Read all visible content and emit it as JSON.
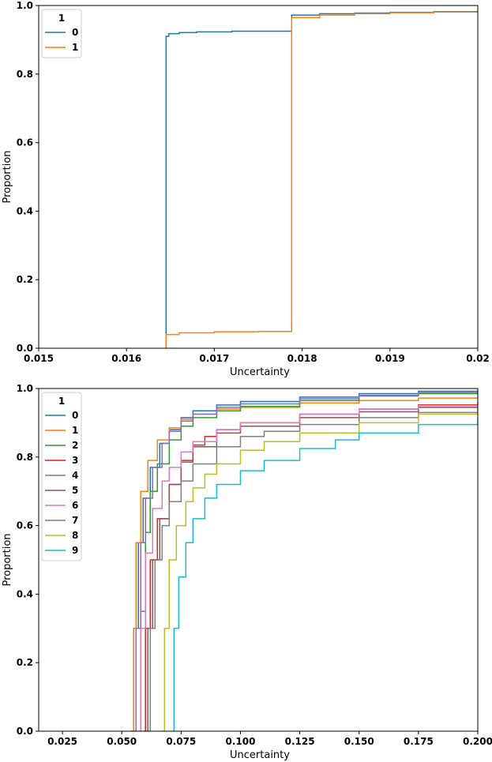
{
  "chart_data": [
    {
      "type": "line",
      "xlabel": "Uncertainty",
      "ylabel": "Proportion",
      "xlim": [
        0.015,
        0.02
      ],
      "ylim": [
        0.0,
        1.0
      ],
      "xticks": [
        "0.015",
        "0.016",
        "0.017",
        "0.018",
        "0.019",
        "0.02"
      ],
      "yticks": [
        "0.0",
        "0.2",
        "0.4",
        "0.6",
        "0.8",
        "1.0"
      ],
      "legend": {
        "title": "1",
        "placement": "top-left"
      },
      "grid": false,
      "series": [
        {
          "name": "0",
          "color": "#1f77b4",
          "x": [
            0.01645,
            0.01645,
            0.01648,
            0.0166,
            0.0168,
            0.0172,
            0.01788,
            0.01788,
            0.0182,
            0.0186,
            0.019,
            0.0195,
            0.02
          ],
          "y": [
            0.0,
            0.91,
            0.918,
            0.921,
            0.923,
            0.925,
            0.928,
            0.972,
            0.976,
            0.978,
            0.98,
            0.982,
            0.983
          ]
        },
        {
          "name": "1",
          "color": "#ff7f0e",
          "x": [
            0.01645,
            0.01645,
            0.0166,
            0.017,
            0.0175,
            0.01788,
            0.01788,
            0.0182,
            0.0186,
            0.019,
            0.0195,
            0.02
          ],
          "y": [
            0.0,
            0.04,
            0.045,
            0.048,
            0.049,
            0.05,
            0.965,
            0.972,
            0.976,
            0.979,
            0.981,
            0.983
          ]
        }
      ]
    },
    {
      "type": "line",
      "xlabel": "Uncertainty",
      "ylabel": "Proportion",
      "xlim": [
        0.015,
        0.2
      ],
      "ylim": [
        0.0,
        1.0
      ],
      "xticks": [
        "0.025",
        "0.050",
        "0.075",
        "0.100",
        "0.125",
        "0.150",
        "0.175",
        "0.200"
      ],
      "yticks": [
        "0.0",
        "0.2",
        "0.4",
        "0.6",
        "0.8",
        "1.0"
      ],
      "legend": {
        "title": "1",
        "placement": "top-left"
      },
      "grid": false,
      "series": [
        {
          "name": "0",
          "color": "#1f77b4",
          "x": [
            0.054,
            0.055,
            0.057,
            0.059,
            0.062,
            0.066,
            0.07,
            0.075,
            0.08,
            0.09,
            0.1,
            0.125,
            0.15,
            0.175,
            0.2
          ],
          "y": [
            0.0,
            0.3,
            0.55,
            0.68,
            0.77,
            0.84,
            0.88,
            0.915,
            0.935,
            0.952,
            0.962,
            0.975,
            0.985,
            0.992,
            0.995
          ]
        },
        {
          "name": "1",
          "color": "#ff7f0e",
          "x": [
            0.054,
            0.055,
            0.056,
            0.058,
            0.061,
            0.065,
            0.07,
            0.075,
            0.08,
            0.09,
            0.1,
            0.125,
            0.15,
            0.175,
            0.2
          ],
          "y": [
            0.0,
            0.3,
            0.55,
            0.7,
            0.79,
            0.85,
            0.885,
            0.91,
            0.925,
            0.94,
            0.945,
            0.958,
            0.965,
            0.972,
            0.978
          ]
        },
        {
          "name": "2",
          "color": "#2ca02c",
          "x": [
            0.057,
            0.058,
            0.06,
            0.062,
            0.065,
            0.07,
            0.075,
            0.08,
            0.09,
            0.1,
            0.125,
            0.15,
            0.175,
            0.2
          ],
          "y": [
            0.0,
            0.35,
            0.58,
            0.7,
            0.78,
            0.85,
            0.89,
            0.915,
            0.935,
            0.948,
            0.965,
            0.978,
            0.985,
            0.99
          ]
        },
        {
          "name": "3",
          "color": "#d62728",
          "x": [
            0.059,
            0.06,
            0.062,
            0.065,
            0.07,
            0.075,
            0.08,
            0.085,
            0.09,
            0.1,
            0.125,
            0.15,
            0.175,
            0.2
          ],
          "y": [
            0.0,
            0.3,
            0.5,
            0.62,
            0.72,
            0.79,
            0.835,
            0.86,
            0.88,
            0.9,
            0.925,
            0.94,
            0.952,
            0.96
          ]
        },
        {
          "name": "4",
          "color": "#9467bd",
          "x": [
            0.055,
            0.056,
            0.058,
            0.06,
            0.063,
            0.067,
            0.07,
            0.075,
            0.08,
            0.09,
            0.1,
            0.125,
            0.15,
            0.175,
            0.2
          ],
          "y": [
            0.0,
            0.3,
            0.55,
            0.68,
            0.77,
            0.84,
            0.875,
            0.905,
            0.925,
            0.945,
            0.955,
            0.97,
            0.98,
            0.988,
            0.992
          ]
        },
        {
          "name": "5",
          "color": "#8c564b",
          "x": [
            0.06,
            0.061,
            0.063,
            0.066,
            0.07,
            0.075,
            0.08,
            0.09,
            0.1,
            0.125,
            0.15,
            0.175,
            0.2
          ],
          "y": [
            0.0,
            0.3,
            0.5,
            0.62,
            0.72,
            0.785,
            0.83,
            0.87,
            0.89,
            0.915,
            0.932,
            0.945,
            0.955
          ]
        },
        {
          "name": "6",
          "color": "#e377c2",
          "x": [
            0.057,
            0.058,
            0.06,
            0.063,
            0.067,
            0.07,
            0.075,
            0.08,
            0.09,
            0.1,
            0.125,
            0.15,
            0.175,
            0.2
          ],
          "y": [
            0.0,
            0.3,
            0.52,
            0.65,
            0.73,
            0.77,
            0.815,
            0.845,
            0.88,
            0.9,
            0.925,
            0.94,
            0.95,
            0.958
          ]
        },
        {
          "name": "7",
          "color": "#7f7f7f",
          "x": [
            0.061,
            0.062,
            0.064,
            0.067,
            0.07,
            0.075,
            0.08,
            0.09,
            0.1,
            0.11,
            0.125,
            0.15,
            0.175,
            0.2
          ],
          "y": [
            0.0,
            0.3,
            0.5,
            0.6,
            0.67,
            0.73,
            0.78,
            0.83,
            0.86,
            0.875,
            0.895,
            0.915,
            0.93,
            0.94
          ]
        },
        {
          "name": "8",
          "color": "#bcbd22",
          "x": [
            0.067,
            0.068,
            0.07,
            0.073,
            0.077,
            0.08,
            0.085,
            0.09,
            0.1,
            0.11,
            0.125,
            0.15,
            0.175,
            0.2
          ],
          "y": [
            0.0,
            0.3,
            0.5,
            0.6,
            0.67,
            0.71,
            0.75,
            0.78,
            0.82,
            0.845,
            0.87,
            0.9,
            0.925,
            0.94
          ]
        },
        {
          "name": "9",
          "color": "#17becf",
          "x": [
            0.071,
            0.072,
            0.074,
            0.077,
            0.08,
            0.085,
            0.09,
            0.1,
            0.11,
            0.125,
            0.14,
            0.15,
            0.175,
            0.2
          ],
          "y": [
            0.0,
            0.3,
            0.45,
            0.55,
            0.62,
            0.68,
            0.72,
            0.76,
            0.79,
            0.825,
            0.85,
            0.87,
            0.895,
            0.915
          ]
        }
      ]
    }
  ]
}
